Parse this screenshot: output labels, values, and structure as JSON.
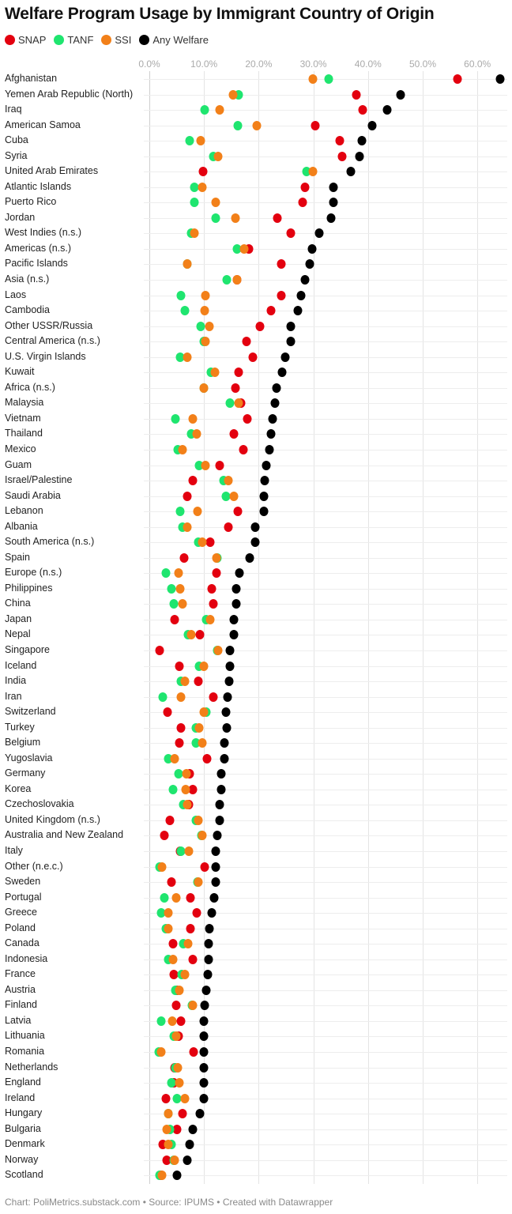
{
  "title": "Welfare Program Usage by Immigrant Country of Origin",
  "footer": "Chart: PoliMetrics.substack.com • Source: IPUMS • Created with Datawrapper",
  "legend": [
    {
      "label": "SNAP",
      "color": "#e3000f"
    },
    {
      "label": "TANF",
      "color": "#1fe56f"
    },
    {
      "label": "SSI",
      "color": "#f28019"
    },
    {
      "label": "Any Welfare",
      "color": "#000000"
    }
  ],
  "chart_data": {
    "type": "scatter",
    "title": "Welfare Program Usage by Immigrant Country of Origin",
    "xlabel": "",
    "ylabel": "",
    "xlim": [
      0,
      65
    ],
    "x_ticks": [
      "0.0%",
      "10.0%",
      "20.0%",
      "30.0%",
      "40.0%",
      "50.0%",
      "60.0%"
    ],
    "x_tick_values": [
      0,
      10,
      20,
      30,
      40,
      50,
      60
    ],
    "grid": true,
    "legend_position": "top",
    "series_order": [
      "SNAP",
      "TANF",
      "SSI",
      "Any Welfare"
    ],
    "series_colors": {
      "SNAP": "#e3000f",
      "TANF": "#1fe56f",
      "SSI": "#f28019",
      "Any Welfare": "#000000"
    },
    "categories": [
      "Afghanistan",
      "Yemen Arab Republic (North)",
      "Iraq",
      "American Samoa",
      "Cuba",
      "Syria",
      "United Arab Emirates",
      "Atlantic Islands",
      "Puerto Rico",
      "Jordan",
      "West Indies (n.s.)",
      "Americas (n.s.)",
      "Pacific Islands",
      "Asia (n.s.)",
      "Laos",
      "Cambodia",
      "Other USSR/Russia",
      "Central America (n.s.)",
      "U.S. Virgin Islands",
      "Kuwait",
      "Africa (n.s.)",
      "Malaysia",
      "Vietnam",
      "Thailand",
      "Mexico",
      "Guam",
      "Israel/Palestine",
      "Saudi Arabia",
      "Lebanon",
      "Albania",
      "South America (n.s.)",
      "Spain",
      "Europe (n.s.)",
      "Philippines",
      "China",
      "Japan",
      "Nepal",
      "Singapore",
      "Iceland",
      "India",
      "Iran",
      "Switzerland",
      "Turkey",
      "Belgium",
      "Yugoslavia",
      "Germany",
      "Korea",
      "Czechoslovakia",
      "United Kingdom (n.s.)",
      "Australia and New Zealand",
      "Italy",
      "Other (n.e.c.)",
      "Sweden",
      "Portugal",
      "Greece",
      "Poland",
      "Canada",
      "Indonesia",
      "France",
      "Austria",
      "Finland",
      "Latvia",
      "Lithuania",
      "Romania",
      "Netherlands",
      "England",
      "Ireland",
      "Hungary",
      "Bulgaria",
      "Denmark",
      "Norway",
      "Scotland"
    ],
    "series": [
      {
        "name": "SNAP",
        "values": [
          56.4,
          37.9,
          39.0,
          30.4,
          34.8,
          35.2,
          9.8,
          28.5,
          28.0,
          23.4,
          25.9,
          18.2,
          24.1,
          16.1,
          24.1,
          22.3,
          20.2,
          17.8,
          19.0,
          16.3,
          15.8,
          16.8,
          17.9,
          15.5,
          17.2,
          12.9,
          7.9,
          6.9,
          16.2,
          14.5,
          11.1,
          6.4,
          12.3,
          11.4,
          11.7,
          4.6,
          9.2,
          1.9,
          5.5,
          8.9,
          11.7,
          3.3,
          5.8,
          5.5,
          10.6,
          7.4,
          8.0,
          7.2,
          3.8,
          2.7,
          5.6,
          10.1,
          4.0,
          7.5,
          8.6,
          7.5,
          4.3,
          7.9,
          4.5,
          5.1,
          4.9,
          5.8,
          5.4,
          8.1,
          4.6,
          4.5,
          3.1,
          6.0,
          5.1,
          2.5,
          3.2,
          2.2
        ]
      },
      {
        "name": "TANF",
        "values": [
          32.8,
          16.4,
          10.1,
          16.2,
          7.4,
          11.7,
          28.8,
          8.2,
          8.3,
          12.2,
          7.6,
          16.0,
          6.9,
          14.2,
          5.8,
          6.5,
          9.4,
          10.0,
          5.6,
          11.3,
          10.0,
          14.8,
          4.7,
          7.6,
          5.2,
          9.1,
          13.6,
          14.0,
          5.6,
          6.0,
          9.0,
          12.4,
          3.0,
          4.1,
          4.5,
          10.4,
          7.1,
          12.4,
          9.1,
          5.8,
          2.5,
          10.4,
          8.5,
          8.5,
          3.5,
          5.3,
          4.3,
          6.2,
          8.5,
          9.6,
          5.8,
          1.9,
          8.8,
          2.8,
          2.1,
          3.0,
          6.2,
          3.4,
          5.9,
          4.7,
          7.8,
          2.1,
          4.5,
          1.7,
          4.8,
          4.1,
          5.0,
          3.4,
          3.7,
          4.1,
          4.5,
          1.9
        ]
      },
      {
        "name": "SSI",
        "values": [
          29.9,
          15.3,
          12.9,
          19.6,
          9.4,
          12.6,
          29.9,
          9.7,
          12.2,
          15.7,
          8.2,
          17.3,
          7.0,
          16.0,
          10.3,
          10.1,
          11.0,
          10.2,
          6.9,
          12.0,
          10.0,
          16.4,
          7.9,
          8.6,
          6.1,
          10.3,
          14.5,
          15.5,
          8.8,
          7.0,
          9.7,
          12.3,
          5.4,
          5.6,
          6.1,
          11.1,
          7.7,
          12.5,
          9.9,
          6.5,
          5.8,
          9.9,
          9.1,
          9.7,
          4.6,
          6.8,
          6.7,
          7.0,
          8.9,
          9.7,
          7.2,
          2.3,
          8.9,
          4.9,
          3.5,
          3.5,
          7.1,
          4.3,
          6.5,
          5.5,
          7.9,
          4.2,
          4.9,
          2.1,
          5.2,
          5.5,
          6.5,
          3.5,
          3.2,
          3.4,
          4.6,
          2.3
        ]
      },
      {
        "name": "Any Welfare",
        "values": [
          64.2,
          46.0,
          43.5,
          40.7,
          38.9,
          38.4,
          36.8,
          33.6,
          33.6,
          33.3,
          31.1,
          29.8,
          29.4,
          28.5,
          27.7,
          27.1,
          25.9,
          25.9,
          24.8,
          24.3,
          23.3,
          23.0,
          22.6,
          22.3,
          21.9,
          21.4,
          21.1,
          20.9,
          20.9,
          19.4,
          19.4,
          18.3,
          16.5,
          15.9,
          15.9,
          15.4,
          15.4,
          14.8,
          14.8,
          14.6,
          14.3,
          14.0,
          14.1,
          13.8,
          13.8,
          13.2,
          13.1,
          12.9,
          12.8,
          12.4,
          12.2,
          12.2,
          12.1,
          11.8,
          11.4,
          11.0,
          10.9,
          10.9,
          10.7,
          10.4,
          10.1,
          10.0,
          10.0,
          9.9,
          9.9,
          9.9,
          9.9,
          9.3,
          7.9,
          7.4,
          7.0,
          5.1
        ]
      }
    ]
  }
}
